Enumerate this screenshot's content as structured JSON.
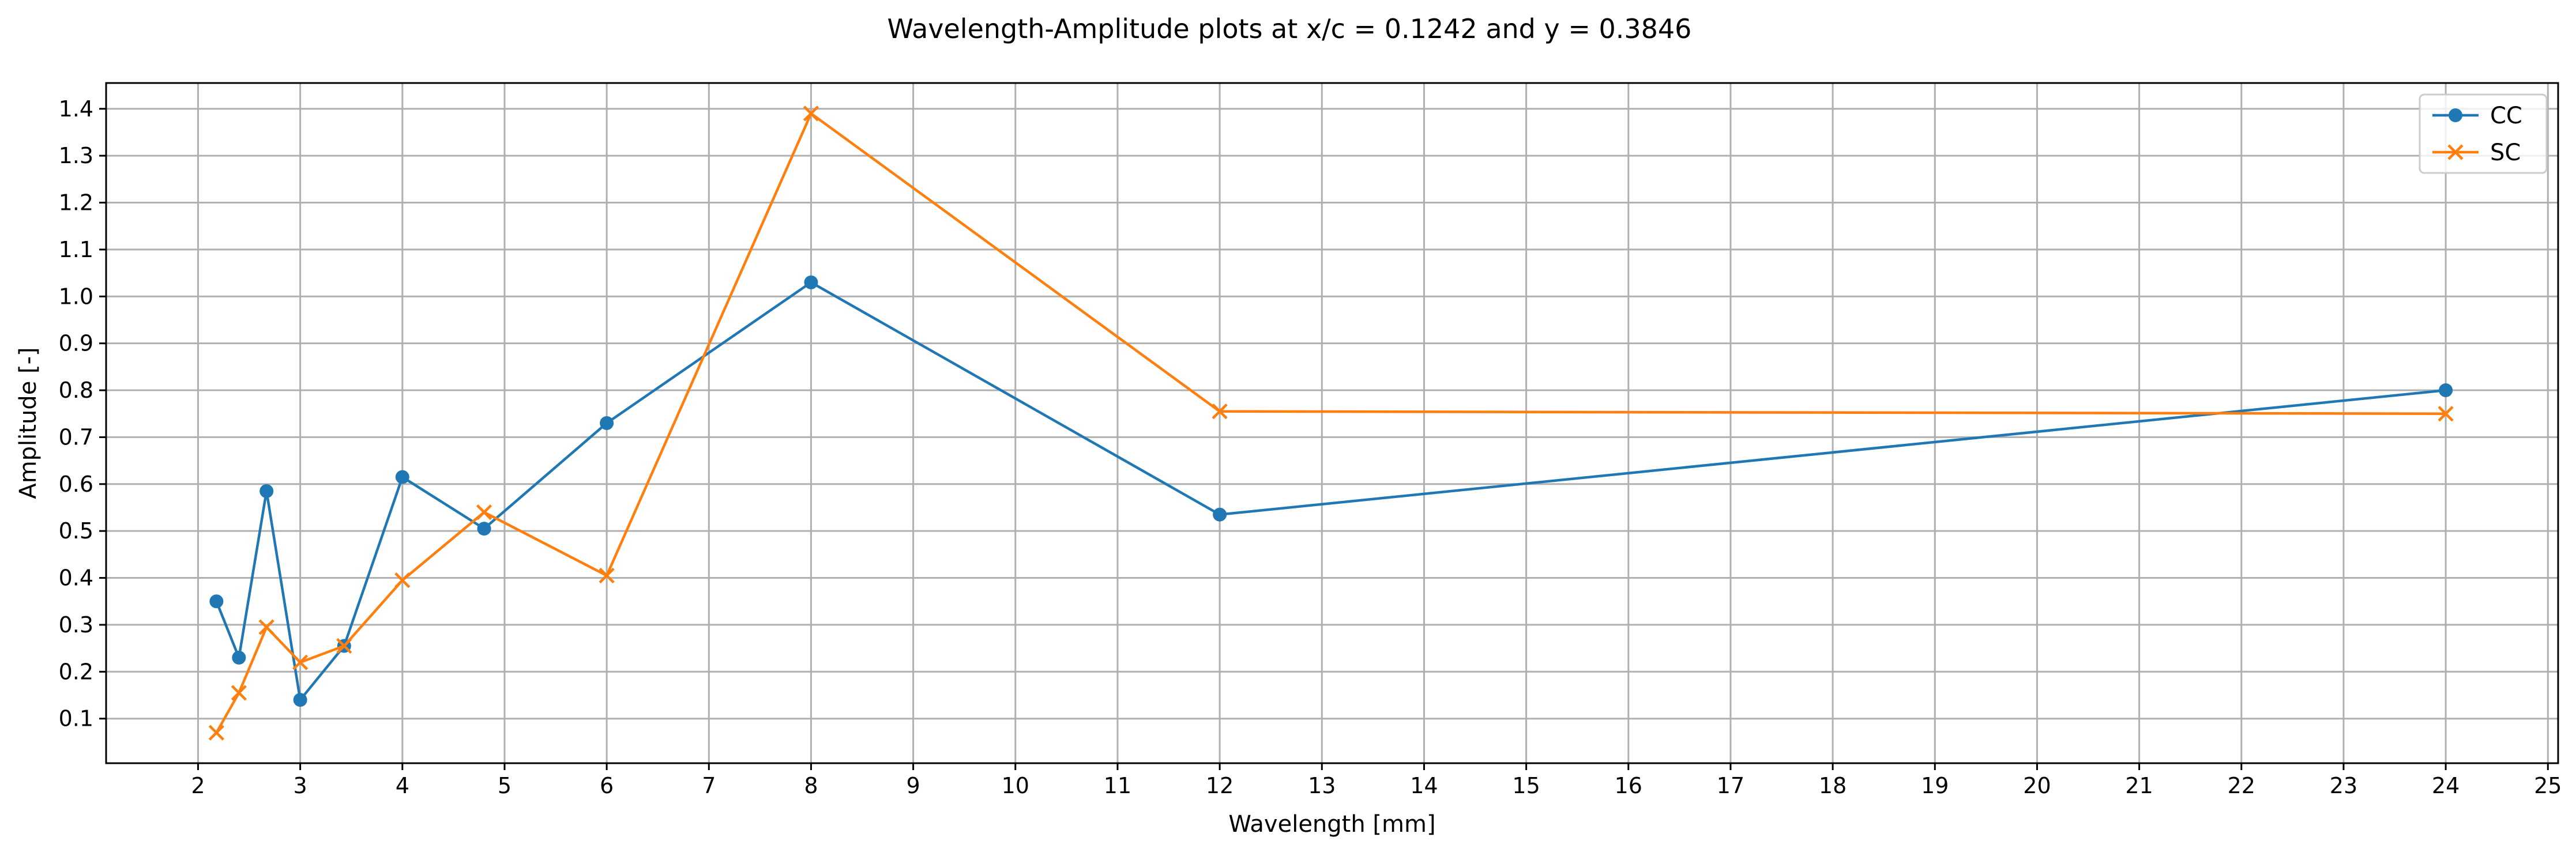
{
  "chart_data": {
    "type": "line",
    "title": "Wavelength-Amplitude plots at x/c = 0.1242 and y = 0.3846",
    "xlabel": "Wavelength [mm]",
    "ylabel": "Amplitude [-]",
    "xlim": [
      1.1,
      25.1
    ],
    "ylim": [
      0.005,
      1.455
    ],
    "xticks": [
      2,
      3,
      4,
      5,
      6,
      7,
      8,
      9,
      10,
      11,
      12,
      13,
      14,
      15,
      16,
      17,
      18,
      19,
      20,
      21,
      22,
      23,
      24,
      25
    ],
    "xtick_labels": [
      "2",
      "3",
      "4",
      "5",
      "6",
      "7",
      "8",
      "9",
      "10",
      "11",
      "12",
      "13",
      "14",
      "15",
      "16",
      "17",
      "18",
      "19",
      "20",
      "21",
      "22",
      "23",
      "24",
      "25"
    ],
    "yticks": [
      0.1,
      0.2,
      0.3,
      0.4,
      0.5,
      0.6,
      0.7,
      0.8,
      0.9,
      1.0,
      1.1,
      1.2,
      1.3,
      1.4
    ],
    "ytick_labels": [
      "0.1",
      "0.2",
      "0.3",
      "0.4",
      "0.5",
      "0.6",
      "0.7",
      "0.8",
      "0.9",
      "1.0",
      "1.1",
      "1.2",
      "1.3",
      "1.4"
    ],
    "grid": true,
    "legend_position": "upper-right",
    "series": [
      {
        "name": "CC",
        "color": "#1f77b4",
        "marker": "circle",
        "x": [
          2.18,
          2.4,
          2.67,
          3.0,
          3.43,
          4.0,
          4.8,
          6.0,
          8.0,
          12.0,
          24.0
        ],
        "y": [
          0.35,
          0.23,
          0.585,
          0.14,
          0.255,
          0.615,
          0.505,
          0.73,
          1.03,
          0.535,
          0.8
        ]
      },
      {
        "name": "SC",
        "color": "#ff7f0e",
        "marker": "x",
        "x": [
          2.18,
          2.4,
          2.67,
          3.0,
          3.43,
          4.0,
          4.8,
          6.0,
          8.0,
          12.0,
          24.0
        ],
        "y": [
          0.07,
          0.155,
          0.295,
          0.22,
          0.255,
          0.395,
          0.54,
          0.405,
          1.39,
          0.755,
          0.75
        ]
      }
    ]
  }
}
